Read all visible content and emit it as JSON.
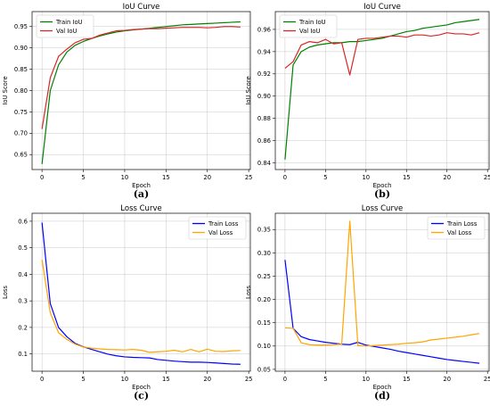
{
  "chart_data": [
    {
      "panel": "(a)",
      "type": "line",
      "title": "IoU Curve",
      "xlabel": "Epoch",
      "ylabel": "IoU Score",
      "xlim": [
        -1.2,
        25.2
      ],
      "ylim": [
        0.615,
        0.985
      ],
      "xticks": [
        0,
        5,
        10,
        15,
        20,
        25
      ],
      "yticks": [
        0.65,
        0.7,
        0.75,
        0.8,
        0.85,
        0.9,
        0.95
      ],
      "ytick_labels": [
        "0.65",
        "0.70",
        "0.75",
        "0.80",
        "0.85",
        "0.90",
        "0.95"
      ],
      "grid": true,
      "legend_position": "top-left",
      "x": [
        0,
        1,
        2,
        3,
        4,
        5,
        6,
        7,
        8,
        9,
        10,
        11,
        12,
        13,
        14,
        15,
        16,
        17,
        18,
        19,
        20,
        21,
        22,
        23,
        24
      ],
      "series": [
        {
          "name": "Train IoU",
          "color": "#008000",
          "values": [
            0.628,
            0.8,
            0.86,
            0.89,
            0.906,
            0.915,
            0.922,
            0.928,
            0.933,
            0.937,
            0.94,
            0.942,
            0.944,
            0.946,
            0.948,
            0.95,
            0.952,
            0.954,
            0.955,
            0.956,
            0.957,
            0.958,
            0.959,
            0.96,
            0.961
          ]
        },
        {
          "name": "Val IoU",
          "color": "#d62728",
          "values": [
            0.71,
            0.83,
            0.88,
            0.897,
            0.912,
            0.92,
            0.922,
            0.93,
            0.935,
            0.94,
            0.941,
            0.943,
            0.944,
            0.945,
            0.945,
            0.946,
            0.947,
            0.948,
            0.948,
            0.948,
            0.947,
            0.948,
            0.95,
            0.95,
            0.949
          ]
        }
      ]
    },
    {
      "panel": "(b)",
      "type": "line",
      "title": "IoU Curve",
      "xlabel": "Epoch",
      "ylabel": "IoU Score",
      "xlim": [
        -1.2,
        25.2
      ],
      "ylim": [
        0.834,
        0.976
      ],
      "xticks": [
        0,
        5,
        10,
        15,
        20,
        25
      ],
      "yticks": [
        0.84,
        0.86,
        0.88,
        0.9,
        0.92,
        0.94,
        0.96
      ],
      "ytick_labels": [
        "0.84",
        "0.86",
        "0.88",
        "0.90",
        "0.92",
        "0.94",
        "0.96"
      ],
      "grid": true,
      "legend_position": "top-left",
      "x": [
        0,
        1,
        2,
        3,
        4,
        5,
        6,
        7,
        8,
        9,
        10,
        11,
        12,
        13,
        14,
        15,
        16,
        17,
        18,
        19,
        20,
        21,
        22,
        23,
        24
      ],
      "series": [
        {
          "name": "Train IoU",
          "color": "#008000",
          "values": [
            0.843,
            0.928,
            0.94,
            0.944,
            0.946,
            0.947,
            0.948,
            0.948,
            0.949,
            0.949,
            0.95,
            0.951,
            0.952,
            0.954,
            0.956,
            0.958,
            0.959,
            0.961,
            0.962,
            0.963,
            0.964,
            0.966,
            0.967,
            0.968,
            0.969
          ]
        },
        {
          "name": "Val IoU",
          "color": "#d62728",
          "values": [
            0.925,
            0.931,
            0.946,
            0.949,
            0.948,
            0.951,
            0.947,
            0.948,
            0.919,
            0.951,
            0.952,
            0.952,
            0.953,
            0.954,
            0.954,
            0.953,
            0.955,
            0.955,
            0.954,
            0.955,
            0.957,
            0.956,
            0.956,
            0.955,
            0.957
          ]
        }
      ]
    },
    {
      "panel": "(c)",
      "type": "line",
      "title": "Loss Curve",
      "xlabel": "Epoch",
      "ylabel": "Loss",
      "xlim": [
        -1.2,
        25.2
      ],
      "ylim": [
        0.035,
        0.63
      ],
      "xticks": [
        0,
        5,
        10,
        15,
        20,
        25
      ],
      "yticks": [
        0.1,
        0.2,
        0.3,
        0.4,
        0.5,
        0.6
      ],
      "ytick_labels": [
        "0.1",
        "0.2",
        "0.3",
        "0.4",
        "0.5",
        "0.6"
      ],
      "grid": true,
      "legend_position": "top-right",
      "x": [
        0,
        1,
        2,
        3,
        4,
        5,
        6,
        7,
        8,
        9,
        10,
        11,
        12,
        13,
        14,
        15,
        16,
        17,
        18,
        19,
        20,
        21,
        22,
        23,
        24
      ],
      "series": [
        {
          "name": "Train Loss",
          "color": "#0000ff",
          "values": [
            0.595,
            0.29,
            0.2,
            0.165,
            0.14,
            0.127,
            0.117,
            0.108,
            0.099,
            0.093,
            0.089,
            0.087,
            0.086,
            0.085,
            0.079,
            0.076,
            0.073,
            0.071,
            0.069,
            0.069,
            0.068,
            0.066,
            0.064,
            0.062,
            0.061
          ]
        },
        {
          "name": "Val Loss",
          "color": "#ffa500",
          "values": [
            0.455,
            0.255,
            0.18,
            0.155,
            0.137,
            0.126,
            0.122,
            0.119,
            0.117,
            0.116,
            0.115,
            0.117,
            0.114,
            0.106,
            0.108,
            0.11,
            0.114,
            0.108,
            0.117,
            0.108,
            0.118,
            0.11,
            0.109,
            0.112,
            0.113
          ]
        }
      ]
    },
    {
      "panel": "(d)",
      "type": "line",
      "title": "Loss Curve",
      "xlabel": "Epoch",
      "ylabel": "Loss",
      "xlim": [
        -1.2,
        25.2
      ],
      "ylim": [
        0.046,
        0.385
      ],
      "xticks": [
        0,
        5,
        10,
        15,
        20,
        25
      ],
      "yticks": [
        0.05,
        0.1,
        0.15,
        0.2,
        0.25,
        0.3,
        0.35
      ],
      "ytick_labels": [
        "0.05",
        "0.10",
        "0.15",
        "0.20",
        "0.25",
        "0.30",
        "0.35"
      ],
      "grid": true,
      "legend_position": "top-right",
      "x": [
        0,
        1,
        2,
        3,
        4,
        5,
        6,
        7,
        8,
        9,
        10,
        11,
        12,
        13,
        14,
        15,
        16,
        17,
        18,
        19,
        20,
        21,
        22,
        23,
        24
      ],
      "series": [
        {
          "name": "Train Loss",
          "color": "#0000ff",
          "values": [
            0.285,
            0.138,
            0.12,
            0.114,
            0.111,
            0.108,
            0.106,
            0.104,
            0.103,
            0.108,
            0.102,
            0.099,
            0.096,
            0.093,
            0.089,
            0.086,
            0.083,
            0.08,
            0.077,
            0.074,
            0.071,
            0.069,
            0.067,
            0.065,
            0.063
          ]
        },
        {
          "name": "Val Loss",
          "color": "#ffa500",
          "values": [
            0.139,
            0.138,
            0.107,
            0.103,
            0.102,
            0.102,
            0.103,
            0.104,
            0.368,
            0.101,
            0.1,
            0.101,
            0.102,
            0.103,
            0.104,
            0.106,
            0.107,
            0.109,
            0.113,
            0.115,
            0.117,
            0.119,
            0.121,
            0.124,
            0.127
          ]
        }
      ]
    }
  ]
}
